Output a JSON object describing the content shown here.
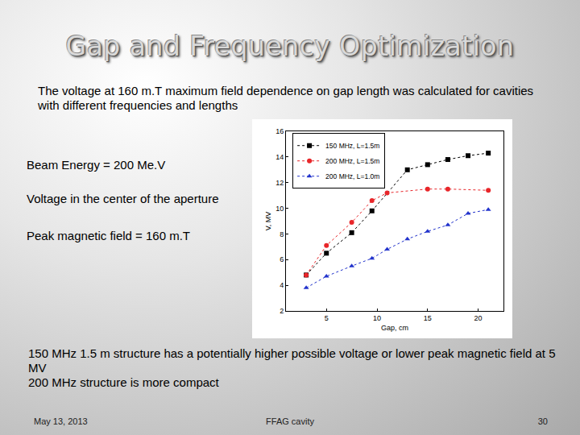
{
  "slide": {
    "title": "Gap and Frequency Optimization",
    "intro": "The voltage at 160 m.T maximum field dependence on gap length was calculated for cavities with different frequencies and lengths",
    "notes": [
      "Beam Energy = 200 Me.V",
      "Voltage in the center of the aperture",
      "Peak magnetic field  = 160 m.T"
    ],
    "conclusion": [
      "150 MHz 1.5 m structure has a potentially higher possible voltage or lower peak magnetic field at 5 MV",
      "200 MHz structure is more compact"
    ],
    "footer": {
      "date": "May 13, 2013",
      "topic": "FFAG cavity",
      "page": 30
    }
  },
  "chart_data": {
    "type": "line",
    "x_label": "Gap, cm",
    "y_label": "V, MV",
    "series": [
      {
        "name": "150 MHz, L=1.5m",
        "color": "#000000",
        "marker": "square",
        "line_style": "dot",
        "x": [
          3,
          5,
          7.5,
          9.5,
          13,
          15,
          17,
          19,
          21
        ],
        "values": [
          4.8,
          6.5,
          8.1,
          9.8,
          13.0,
          13.4,
          13.8,
          14.1,
          14.3
        ]
      },
      {
        "name": "200 MHz, L=1.5m",
        "color": "#e8262a",
        "marker": "circle",
        "line_style": "dot",
        "x": [
          3,
          5,
          7.5,
          9.5,
          11,
          15,
          17,
          21
        ],
        "values": [
          4.8,
          7.1,
          8.9,
          10.6,
          11.2,
          11.5,
          11.5,
          11.4
        ]
      },
      {
        "name": "200 MHz, L=1.0m",
        "color": "#2233cc",
        "marker": "triangle-up",
        "line_style": "dot",
        "x": [
          3,
          5,
          7.5,
          9.5,
          11,
          13,
          15,
          17,
          19,
          21
        ],
        "values": [
          3.8,
          4.7,
          5.5,
          6.1,
          6.8,
          7.6,
          8.2,
          8.7,
          9.6,
          9.9
        ]
      }
    ],
    "xlim": [
      1,
      22.5
    ],
    "xticks": [
      5,
      10,
      15,
      20
    ],
    "ylim": [
      2,
      16
    ],
    "yticks": [
      2,
      4,
      6,
      8,
      10,
      12,
      14,
      16
    ],
    "grid": false,
    "legend": "upper left"
  }
}
